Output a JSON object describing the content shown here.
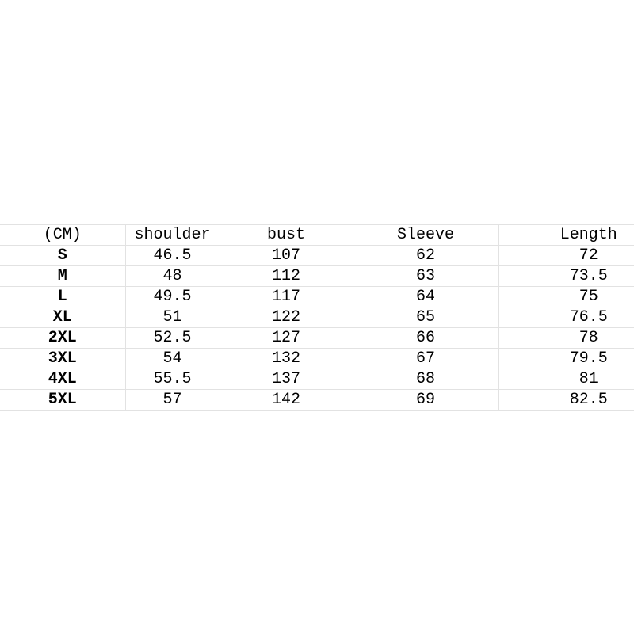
{
  "table": {
    "headers": [
      "(CM)",
      "shoulder",
      "bust",
      "Sleeve",
      "Length"
    ],
    "rows": [
      [
        "S",
        "46.5",
        "107",
        "62",
        "72"
      ],
      [
        "M",
        "48",
        "112",
        "63",
        "73.5"
      ],
      [
        "L",
        "49.5",
        "117",
        "64",
        "75"
      ],
      [
        "XL",
        "51",
        "122",
        "65",
        "76.5"
      ],
      [
        "2XL",
        "52.5",
        "127",
        "66",
        "78"
      ],
      [
        "3XL",
        "54",
        "132",
        "67",
        "79.5"
      ],
      [
        "4XL",
        "55.5",
        "137",
        "68",
        "81"
      ],
      [
        "5XL",
        "57",
        "142",
        "69",
        "82.5"
      ]
    ]
  }
}
